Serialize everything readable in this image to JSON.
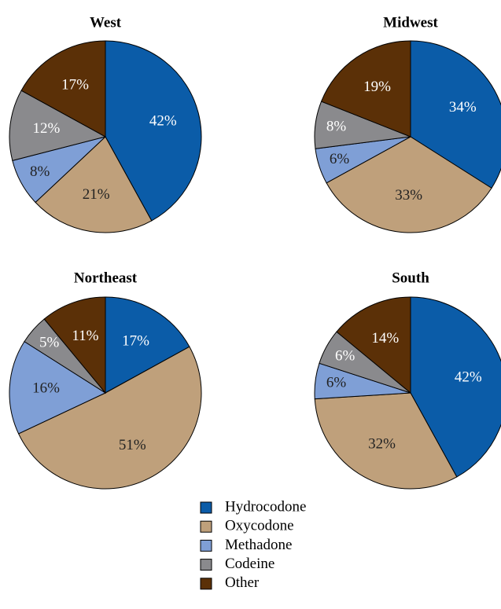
{
  "chart_data": [
    {
      "type": "pie",
      "title": "West",
      "values": [
        42,
        21,
        8,
        12,
        17
      ],
      "value_labels": [
        "42%",
        "21%",
        "8%",
        "12%",
        "17%"
      ]
    },
    {
      "type": "pie",
      "title": "Midwest",
      "values": [
        34,
        33,
        6,
        8,
        19
      ],
      "value_labels": [
        "34%",
        "33%",
        "6%",
        "8%",
        "19%"
      ]
    },
    {
      "type": "pie",
      "title": "Northeast",
      "values": [
        17,
        51,
        16,
        5,
        11
      ],
      "value_labels": [
        "17%",
        "51%",
        "16%",
        "5%",
        "11%"
      ]
    },
    {
      "type": "pie",
      "title": "South",
      "values": [
        42,
        32,
        6,
        6,
        14
      ],
      "value_labels": [
        "42%",
        "32%",
        "6%",
        "6%",
        "14%"
      ]
    }
  ],
  "legend": {
    "labels": [
      "Hydrocodone",
      "Oxycodone",
      "Methadone",
      "Codeine",
      "Other"
    ],
    "colors": [
      "#0b5ca8",
      "#bfa07b",
      "#7f9fd6",
      "#8a8a8d",
      "#5b3007"
    ]
  }
}
